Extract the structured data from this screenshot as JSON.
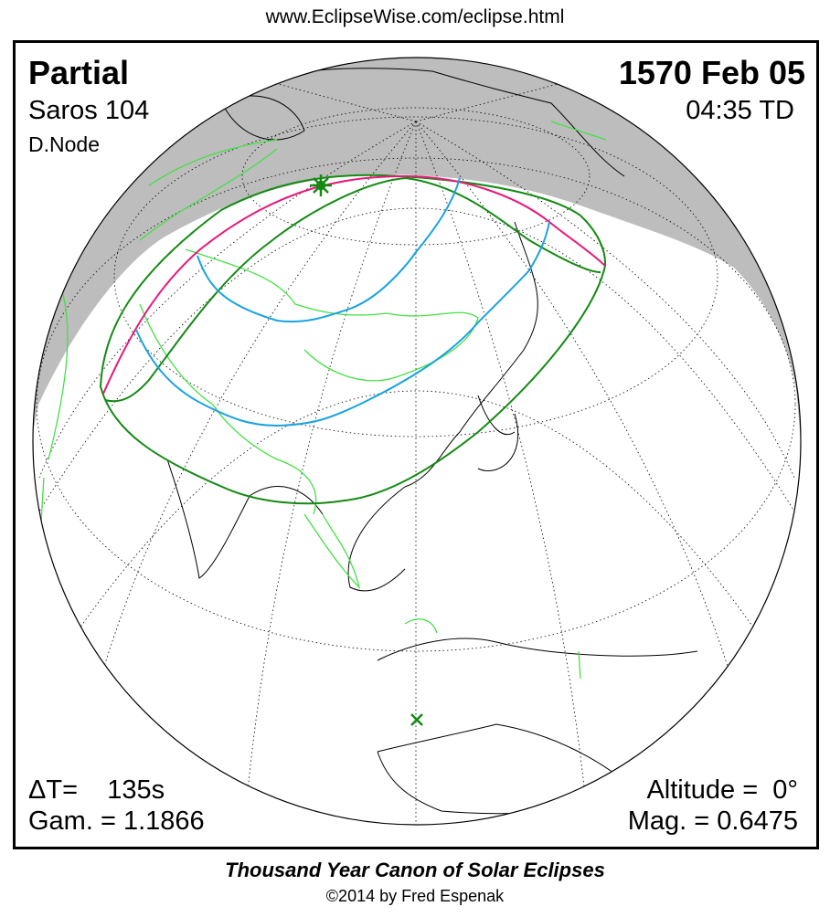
{
  "header": {
    "url": "www.EclipseWise.com/eclipse.html"
  },
  "eclipse": {
    "type": "Partial",
    "date": "1570 Feb 05",
    "saros": "Saros 104",
    "time": "04:35 TD",
    "node": "D.Node",
    "delta_t": "ΔT=    135s",
    "gamma": "Gam. = 1.1866",
    "altitude": "Altitude =  0°",
    "magnitude": "Mag. = 0.6475"
  },
  "map": {
    "projection": "orthographic globe",
    "colors": {
      "night": "#bdbdbd",
      "penumbra_limits": "#138a13",
      "max_eclipse_horizon": "#e8197a",
      "eclipse_at_rise_set": "#1aa3e0",
      "borders": "#44e044",
      "coastlines": "#000000",
      "greatest_eclipse_marker": "#138a13",
      "subsolar_marker": "#138a13"
    },
    "markers": [
      "greatest-eclipse-star",
      "sub-solar-point-cross"
    ]
  },
  "footer": {
    "canon": "Thousand Year Canon of Solar Eclipses",
    "copyright": "©2014 by Fred Espenak"
  }
}
